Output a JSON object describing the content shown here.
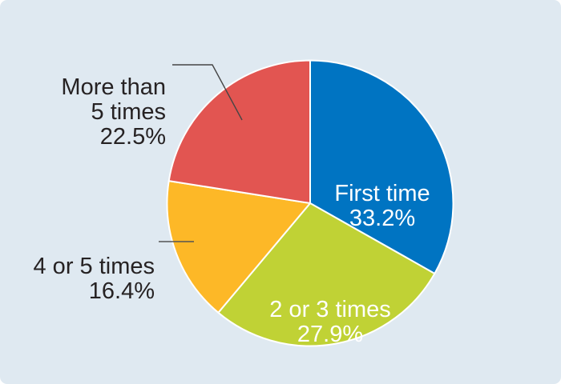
{
  "panel": {
    "background_color": "#DFE9F1",
    "page_color": "#FFFFFF"
  },
  "chart_data": {
    "type": "pie",
    "title": "",
    "unit": "%",
    "start_angle": "12-oclock",
    "direction": "clockwise",
    "legend": "none",
    "slice_border_color": "#FFFFFF",
    "leader_line_color": "#454545",
    "slices": [
      {
        "label": "First time",
        "value": 33.2,
        "pct_label": "33.2%",
        "color": "#0074C2",
        "text_color": "#FFFFFF",
        "label_position": "inside",
        "label_display": "First time"
      },
      {
        "label": "2 or 3 times",
        "value": 27.9,
        "pct_label": "27.9%",
        "color": "#C0D235",
        "text_color": "#FFFFFF",
        "label_position": "inside",
        "label_display": "2 or 3 times"
      },
      {
        "label": "4 or 5 times",
        "value": 16.4,
        "pct_label": "16.4%",
        "color": "#FDB827",
        "text_color": "#262223",
        "label_position": "outside-left",
        "label_display": "4 or 5 times"
      },
      {
        "label": "More than 5 times",
        "value": 22.5,
        "pct_label": "22.5%",
        "color": "#E25551",
        "text_color": "#262223",
        "label_position": "outside-left",
        "label_display": "More than\n5 times"
      }
    ]
  }
}
